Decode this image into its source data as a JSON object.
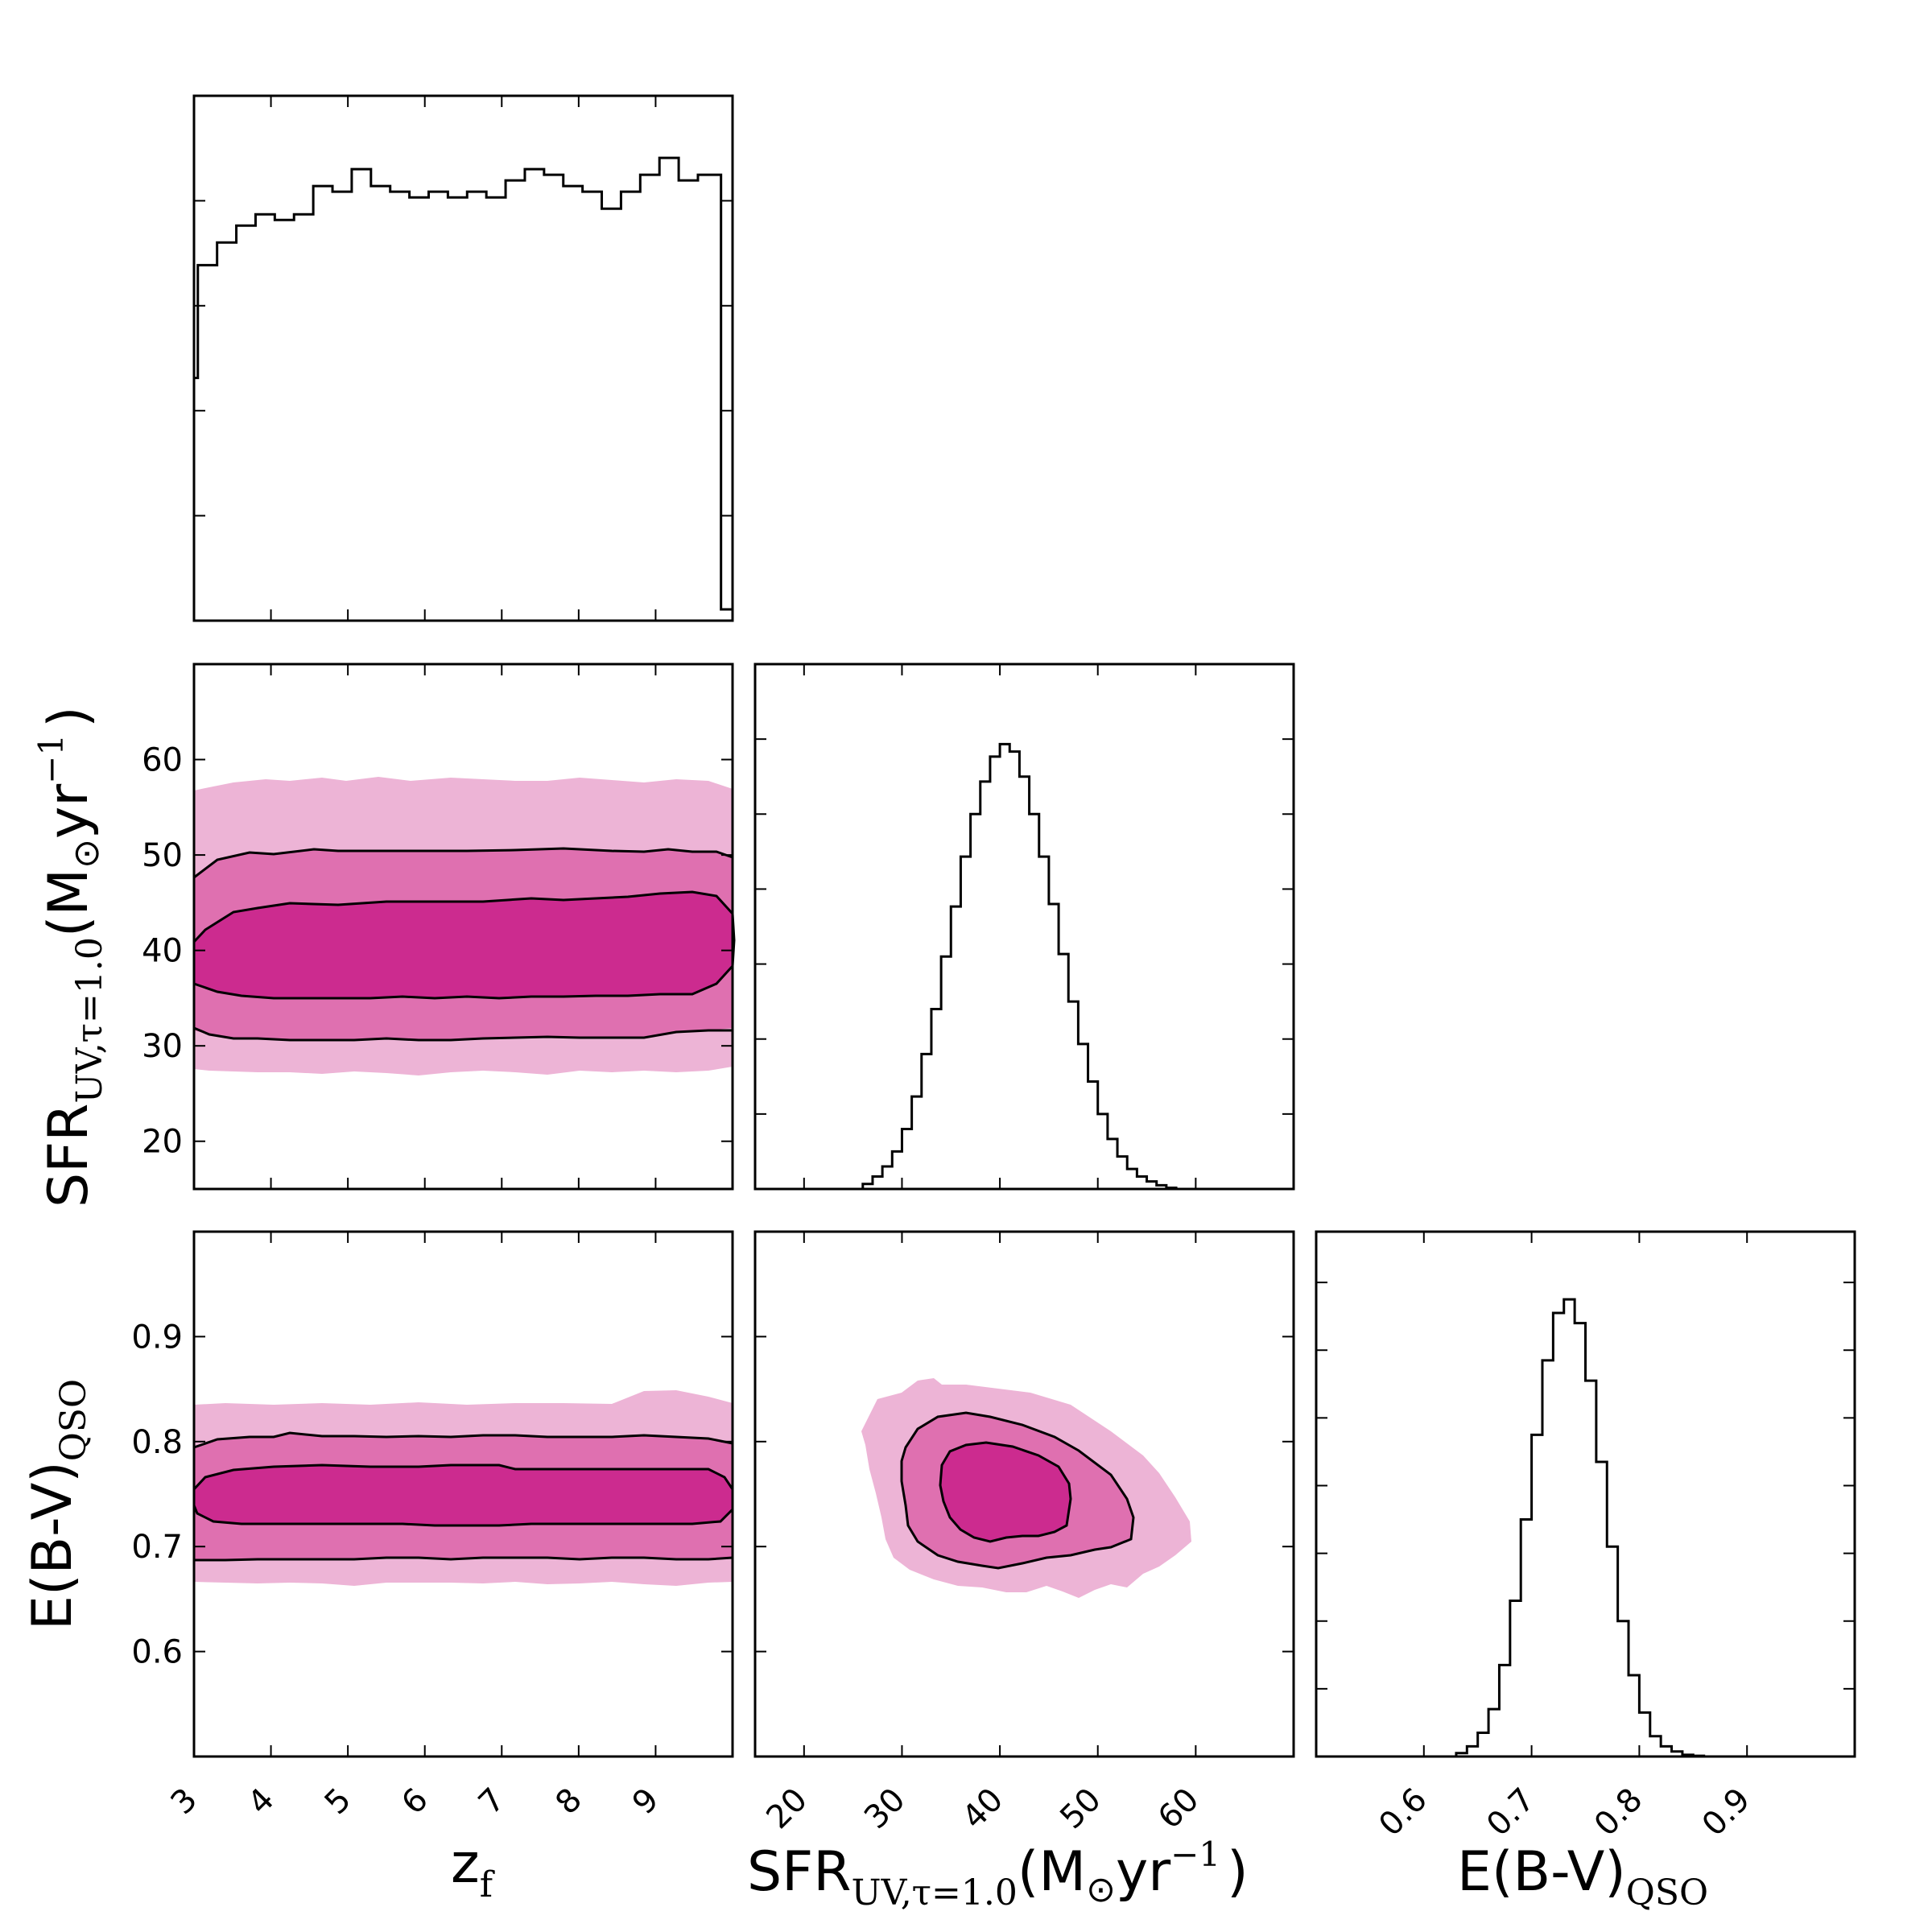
{
  "chart_data": [
    {
      "type": "histogram",
      "panel": "z_f marginal",
      "x_range": [
        3,
        10
      ],
      "x_ticks": [
        "3",
        "4",
        "5",
        "6",
        "7",
        "8",
        "9"
      ],
      "y_ticks_labeled": false,
      "bin_edges": [
        3.0,
        3.05,
        3.3,
        3.55,
        3.8,
        4.05,
        4.3,
        4.55,
        4.8,
        5.05,
        5.3,
        5.55,
        5.8,
        6.05,
        6.3,
        6.55,
        6.8,
        7.05,
        7.3,
        7.55,
        7.8,
        8.05,
        8.3,
        8.55,
        8.8,
        9.05,
        9.3,
        9.55,
        9.85,
        10.0
      ],
      "counts": [
        0.43,
        0.63,
        0.67,
        0.7,
        0.72,
        0.71,
        0.72,
        0.77,
        0.76,
        0.8,
        0.77,
        0.76,
        0.75,
        0.76,
        0.75,
        0.76,
        0.75,
        0.78,
        0.8,
        0.79,
        0.77,
        0.76,
        0.73,
        0.76,
        0.79,
        0.82,
        0.78,
        0.79,
        0.02
      ]
    },
    {
      "type": "histogram",
      "panel": "SFR marginal",
      "x_range": [
        15,
        70
      ],
      "y_ticks_labeled": false,
      "bin_edges": [
        26,
        27,
        28,
        29,
        30,
        31,
        32,
        33,
        34,
        35,
        36,
        37,
        38,
        39,
        40,
        41,
        42,
        43,
        44,
        45,
        46,
        47,
        48,
        49,
        50,
        51,
        52,
        53,
        54,
        55,
        56,
        57,
        58
      ],
      "counts": [
        0.02,
        0.05,
        0.09,
        0.15,
        0.24,
        0.37,
        0.54,
        0.72,
        0.93,
        1.13,
        1.33,
        1.5,
        1.63,
        1.73,
        1.78,
        1.75,
        1.65,
        1.5,
        1.33,
        1.14,
        0.94,
        0.75,
        0.58,
        0.43,
        0.3,
        0.2,
        0.13,
        0.08,
        0.05,
        0.03,
        0.015,
        0.005
      ]
    },
    {
      "type": "histogram",
      "panel": "E(B-V) marginal",
      "x_range": [
        0.5,
        1.0
      ],
      "x_ticks": [
        "0.6",
        "0.7",
        "0.8",
        "0.9"
      ],
      "y_ticks_labeled": false,
      "bin_edges": [
        0.63,
        0.64,
        0.65,
        0.66,
        0.67,
        0.68,
        0.69,
        0.7,
        0.71,
        0.72,
        0.73,
        0.74,
        0.75,
        0.76,
        0.77,
        0.78,
        0.79,
        0.8,
        0.81,
        0.82,
        0.83,
        0.84,
        0.85,
        0.86
      ],
      "counts": [
        0.01,
        0.03,
        0.07,
        0.14,
        0.27,
        0.46,
        0.7,
        0.95,
        1.17,
        1.31,
        1.35,
        1.28,
        1.11,
        0.87,
        0.62,
        0.4,
        0.24,
        0.13,
        0.06,
        0.03,
        0.015,
        0.005,
        0.002
      ]
    },
    {
      "type": "contour",
      "panel": "SFR vs z_f",
      "x_range": [
        3,
        10
      ],
      "y_range": [
        15,
        70
      ],
      "y_ticks": [
        "20",
        "30",
        "40",
        "50",
        "60"
      ],
      "levels": [
        "1-sigma",
        "2-sigma",
        "3-sigma"
      ],
      "inner_contour_y": [
        35,
        45
      ],
      "middle_contour_y": [
        31,
        50
      ],
      "outer_region_y": [
        28,
        56
      ]
    },
    {
      "type": "contour",
      "panel": "E(B-V) vs z_f",
      "x_range": [
        3,
        10
      ],
      "y_range": [
        0.5,
        1.0
      ],
      "y_ticks": [
        "0.6",
        "0.7",
        "0.8",
        "0.9"
      ],
      "inner_contour_y": [
        0.71,
        0.775
      ],
      "middle_contour_y": [
        0.685,
        0.805
      ],
      "outer_region_y": [
        0.665,
        0.835
      ]
    },
    {
      "type": "contour",
      "panel": "E(B-V) vs SFR",
      "x_range": [
        15,
        70
      ],
      "y_range": [
        0.5,
        1.0
      ],
      "x_ticks": [
        "20",
        "30",
        "40",
        "50",
        "60"
      ],
      "inner_center": [
        40,
        0.745
      ],
      "inner_contour_x": [
        34,
        48
      ],
      "middle_contour_x": [
        29,
        53
      ],
      "outer_region_x": [
        25,
        59
      ]
    }
  ],
  "labels": {
    "zf_main": "z",
    "zf_sub": "f",
    "sfr_main": "SFR",
    "sfr_sub": "UV,τ=1.0",
    "sfr_unit_open": "(M",
    "sfr_sun": "⊙",
    "sfr_yr": "yr",
    "sfr_exp": "−1",
    "sfr_close": ")",
    "ebv_main": "E(B-V)",
    "ebv_sub": "QSO"
  },
  "colors": {
    "level1": "#cc2b8f",
    "level2": "#df70b0",
    "level3": "#edb4d6",
    "line": "#000000"
  }
}
